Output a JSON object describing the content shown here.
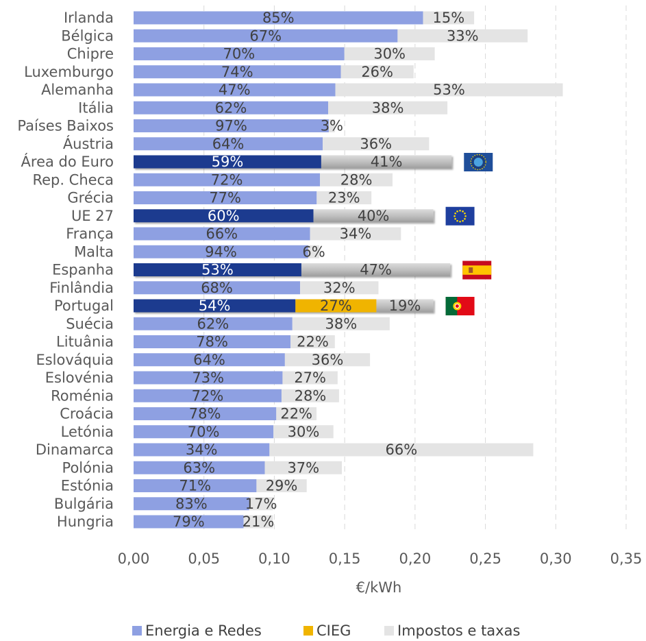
{
  "chart_data": {
    "type": "bar",
    "orientation": "horizontal",
    "stacked": true,
    "xlabel": "€/kWh",
    "xlim": [
      0,
      0.35
    ],
    "xticks": [
      "0,00",
      "0,05",
      "0,10",
      "0,15",
      "0,20",
      "0,25",
      "0,30",
      "0,35"
    ],
    "xtick_values": [
      0,
      0.05,
      0.1,
      0.15,
      0.2,
      0.25,
      0.3,
      0.35
    ],
    "grid": "vertical-dashed",
    "legend_position": "bottom",
    "legend": [
      {
        "name": "Energia e Redes",
        "color": "#8ea0e2"
      },
      {
        "name": "CIEG",
        "color": "#f0b400"
      },
      {
        "name": "Impostos e taxas",
        "color": "#e4e4e4"
      }
    ],
    "colors": {
      "energia": "#8ea0e2",
      "energia_highlight": "#1f3b8f",
      "cieg": "#f0b400",
      "impostos": "#e4e4e4",
      "impostos_highlight": "#bdbdbd"
    },
    "rows": [
      {
        "country": "Irlanda",
        "total": 0.242,
        "segments": [
          {
            "series": "Energia e Redes",
            "pct": "85%"
          },
          {
            "series": "Impostos e taxas",
            "pct": "15%"
          }
        ]
      },
      {
        "country": "Bélgica",
        "total": 0.28,
        "segments": [
          {
            "series": "Energia e Redes",
            "pct": "67%"
          },
          {
            "series": "Impostos e taxas",
            "pct": "33%"
          }
        ]
      },
      {
        "country": "Chipre",
        "total": 0.214,
        "segments": [
          {
            "series": "Energia e Redes",
            "pct": "70%"
          },
          {
            "series": "Impostos e taxas",
            "pct": "30%"
          }
        ]
      },
      {
        "country": "Luxemburgo",
        "total": 0.199,
        "segments": [
          {
            "series": "Energia e Redes",
            "pct": "74%"
          },
          {
            "series": "Impostos e taxas",
            "pct": "26%"
          }
        ]
      },
      {
        "country": "Alemanha",
        "total": 0.305,
        "segments": [
          {
            "series": "Energia e Redes",
            "pct": "47%"
          },
          {
            "series": "Impostos e taxas",
            "pct": "53%"
          }
        ]
      },
      {
        "country": "Itália",
        "total": 0.223,
        "segments": [
          {
            "series": "Energia e Redes",
            "pct": "62%"
          },
          {
            "series": "Impostos e taxas",
            "pct": "38%"
          }
        ]
      },
      {
        "country": "Países Baixos",
        "total": 0.143,
        "segments": [
          {
            "series": "Energia e Redes",
            "pct": "97%"
          },
          {
            "series": "Impostos e taxas",
            "pct": "3%"
          }
        ]
      },
      {
        "country": "Áustria",
        "total": 0.21,
        "segments": [
          {
            "series": "Energia e Redes",
            "pct": "64%"
          },
          {
            "series": "Impostos e taxas",
            "pct": "36%"
          }
        ]
      },
      {
        "country": "Área do Euro",
        "total": 0.226,
        "highlight": true,
        "flag": "ecb",
        "segments": [
          {
            "series": "Energia e Redes",
            "pct": "59%"
          },
          {
            "series": "Impostos e taxas",
            "pct": "41%"
          }
        ]
      },
      {
        "country": "Rep. Checa",
        "total": 0.184,
        "segments": [
          {
            "series": "Energia e Redes",
            "pct": "72%"
          },
          {
            "series": "Impostos e taxas",
            "pct": "28%"
          }
        ]
      },
      {
        "country": "Grécia",
        "total": 0.169,
        "segments": [
          {
            "series": "Energia e Redes",
            "pct": "77%"
          },
          {
            "series": "Impostos e taxas",
            "pct": "23%"
          }
        ]
      },
      {
        "country": "UE 27",
        "total": 0.213,
        "highlight": true,
        "flag": "eu",
        "segments": [
          {
            "series": "Energia e Redes",
            "pct": "60%"
          },
          {
            "series": "Impostos e taxas",
            "pct": "40%"
          }
        ]
      },
      {
        "country": "França",
        "total": 0.19,
        "segments": [
          {
            "series": "Energia e Redes",
            "pct": "66%"
          },
          {
            "series": "Impostos e taxas",
            "pct": "34%"
          }
        ]
      },
      {
        "country": "Malta",
        "total": 0.132,
        "segments": [
          {
            "series": "Energia e Redes",
            "pct": "94%"
          },
          {
            "series": "Impostos e taxas",
            "pct": "6%"
          }
        ]
      },
      {
        "country": "Espanha",
        "total": 0.225,
        "highlight": true,
        "flag": "es",
        "segments": [
          {
            "series": "Energia e Redes",
            "pct": "53%"
          },
          {
            "series": "Impostos e taxas",
            "pct": "47%"
          }
        ]
      },
      {
        "country": "Finlândia",
        "total": 0.174,
        "segments": [
          {
            "series": "Energia e Redes",
            "pct": "68%"
          },
          {
            "series": "Impostos e taxas",
            "pct": "32%"
          }
        ]
      },
      {
        "country": "Portugal",
        "total": 0.213,
        "highlight": true,
        "flag": "pt",
        "segments": [
          {
            "series": "Energia e Redes",
            "pct": "54%"
          },
          {
            "series": "CIEG",
            "pct": "27%"
          },
          {
            "series": "Impostos e taxas",
            "pct": "19%"
          }
        ]
      },
      {
        "country": "Suécia",
        "total": 0.182,
        "segments": [
          {
            "series": "Energia e Redes",
            "pct": "62%"
          },
          {
            "series": "Impostos e taxas",
            "pct": "38%"
          }
        ]
      },
      {
        "country": "Lituânia",
        "total": 0.143,
        "segments": [
          {
            "series": "Energia e Redes",
            "pct": "78%"
          },
          {
            "series": "Impostos e taxas",
            "pct": "22%"
          }
        ]
      },
      {
        "country": "Eslováquia",
        "total": 0.168,
        "segments": [
          {
            "series": "Energia e Redes",
            "pct": "64%"
          },
          {
            "series": "Impostos e taxas",
            "pct": "36%"
          }
        ]
      },
      {
        "country": "Eslovénia",
        "total": 0.145,
        "segments": [
          {
            "series": "Energia e Redes",
            "pct": "73%"
          },
          {
            "series": "Impostos e taxas",
            "pct": "27%"
          }
        ]
      },
      {
        "country": "Roménia",
        "total": 0.146,
        "segments": [
          {
            "series": "Energia e Redes",
            "pct": "72%"
          },
          {
            "series": "Impostos e taxas",
            "pct": "28%"
          }
        ]
      },
      {
        "country": "Croácia",
        "total": 0.13,
        "segments": [
          {
            "series": "Energia e Redes",
            "pct": "78%"
          },
          {
            "series": "Impostos e taxas",
            "pct": "22%"
          }
        ]
      },
      {
        "country": "Letónia",
        "total": 0.142,
        "segments": [
          {
            "series": "Energia e Redes",
            "pct": "70%"
          },
          {
            "series": "Impostos e taxas",
            "pct": "30%"
          }
        ]
      },
      {
        "country": "Dinamarca",
        "total": 0.284,
        "segments": [
          {
            "series": "Energia e Redes",
            "pct": "34%"
          },
          {
            "series": "Impostos e taxas",
            "pct": "66%"
          }
        ]
      },
      {
        "country": "Polónia",
        "total": 0.148,
        "segments": [
          {
            "series": "Energia e Redes",
            "pct": "63%"
          },
          {
            "series": "Impostos e taxas",
            "pct": "37%"
          }
        ]
      },
      {
        "country": "Estónia",
        "total": 0.123,
        "segments": [
          {
            "series": "Energia e Redes",
            "pct": "71%"
          },
          {
            "series": "Impostos e taxas",
            "pct": "29%"
          }
        ]
      },
      {
        "country": "Bulgária",
        "total": 0.099,
        "segments": [
          {
            "series": "Energia e Redes",
            "pct": "83%"
          },
          {
            "series": "Impostos e taxas",
            "pct": "17%"
          }
        ]
      },
      {
        "country": "Hungria",
        "total": 0.099,
        "segments": [
          {
            "series": "Energia e Redes",
            "pct": "79%"
          },
          {
            "series": "Impostos e taxas",
            "pct": "21%"
          }
        ]
      }
    ]
  }
}
